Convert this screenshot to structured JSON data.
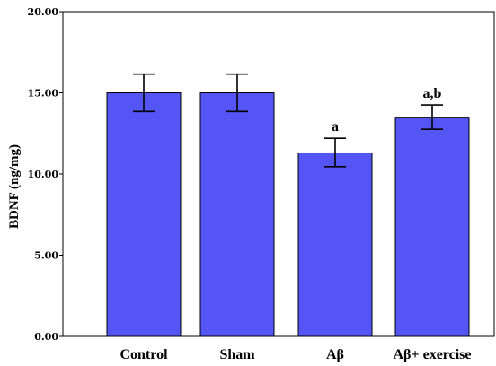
{
  "chart_data": {
    "type": "bar",
    "title": "",
    "xlabel": "",
    "ylabel": "BDNF (ng/mg)",
    "ylim": [
      0,
      20
    ],
    "yticks": [
      "0.00",
      "5.00",
      "10.00",
      "15.00",
      "20.00"
    ],
    "categories": [
      "Control",
      "Sham",
      "Aβ",
      "Aβ+ exercise"
    ],
    "values": [
      15.0,
      15.0,
      11.3,
      13.5
    ],
    "error_low": [
      13.85,
      13.85,
      10.45,
      12.75
    ],
    "error_high": [
      16.15,
      16.15,
      12.2,
      14.25
    ],
    "annotations": [
      "",
      "",
      "a",
      "a,b"
    ],
    "bar_color": "#5555f5",
    "bar_edge_color": "#000000",
    "grid": false,
    "legend": "none"
  }
}
